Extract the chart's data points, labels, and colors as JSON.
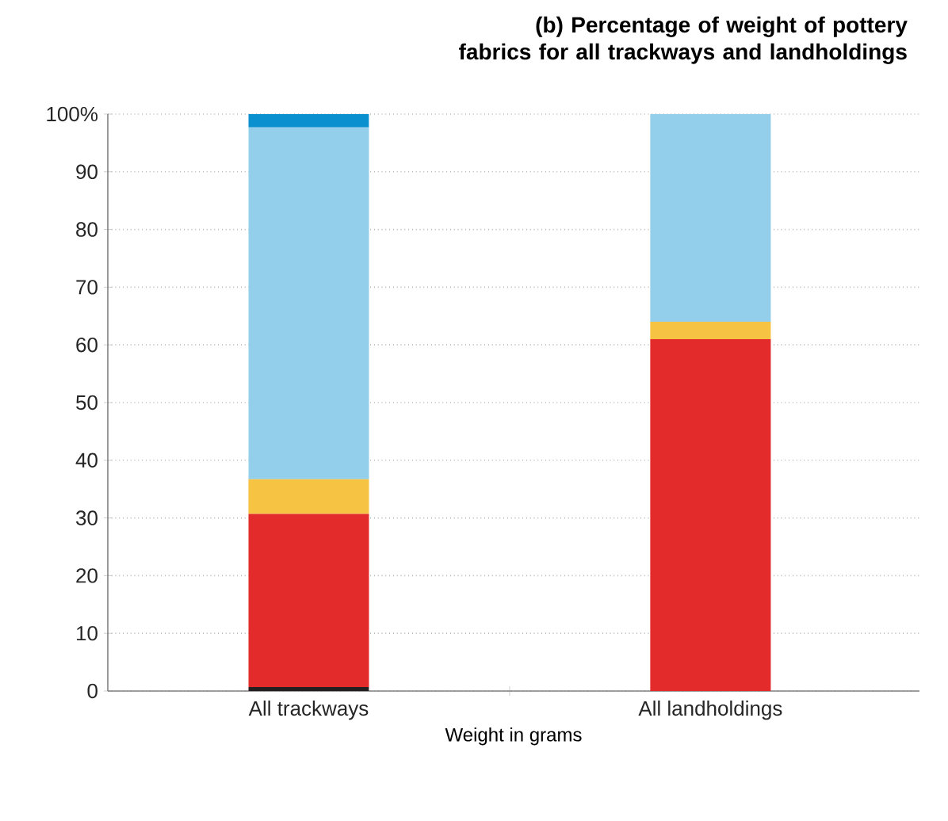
{
  "chart_data": {
    "type": "bar",
    "stacked": true,
    "title": "(b) Percentage of weight of pottery fabrics for all trackways and landholdings",
    "xlabel": "Weight in grams",
    "categories": [
      "All trackways",
      "All landholdings"
    ],
    "series": [
      {
        "color": "#231f20",
        "values": [
          0.7,
          null
        ]
      },
      {
        "color": "#e32b2b",
        "values": [
          30,
          61
        ]
      },
      {
        "color": "#f6c343",
        "values": [
          6,
          3
        ]
      },
      {
        "color": "#93cfea",
        "values": [
          61,
          36
        ]
      },
      {
        "color": "#0a8fcf",
        "values": [
          2.3,
          null
        ]
      }
    ],
    "ylim": [
      0,
      100
    ],
    "yticks": [
      0,
      10,
      20,
      30,
      40,
      50,
      60,
      70,
      80,
      90,
      {
        "value": 100,
        "label": "100%"
      }
    ],
    "grid": "y"
  }
}
